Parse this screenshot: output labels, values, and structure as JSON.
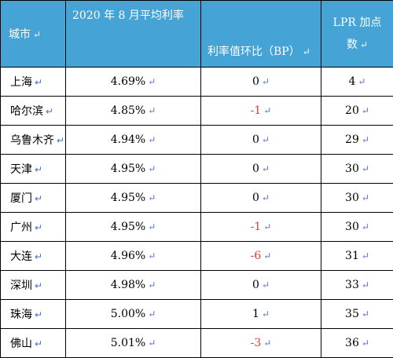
{
  "header": {
    "city": "城市",
    "rate": "2020 年 8 月平均利率",
    "change": "利率值环比（BP）",
    "lpr_line1": "LPR 加点",
    "lpr_line2": "数"
  },
  "rows": [
    {
      "city": "上海",
      "rate": "4.69%",
      "change": "0",
      "lpr": "4"
    },
    {
      "city": "哈尔滨",
      "rate": "4.85%",
      "change": "-1",
      "lpr": "20"
    },
    {
      "city": "乌鲁木齐",
      "rate": "4.94%",
      "change": "0",
      "lpr": "29"
    },
    {
      "city": "天津",
      "rate": "4.95%",
      "change": "0",
      "lpr": "30"
    },
    {
      "city": "厦门",
      "rate": "4.95%",
      "change": "0",
      "lpr": "30"
    },
    {
      "city": "广州",
      "rate": "4.95%",
      "change": "-1",
      "lpr": "30"
    },
    {
      "city": "大连",
      "rate": "4.96%",
      "change": "-6",
      "lpr": "31"
    },
    {
      "city": "深圳",
      "rate": "4.98%",
      "change": "0",
      "lpr": "33"
    },
    {
      "city": "珠海",
      "rate": "5.00%",
      "change": "1",
      "lpr": "35"
    },
    {
      "city": "佛山",
      "rate": "5.01%",
      "change": "-3",
      "lpr": "36"
    }
  ],
  "colors": {
    "header_bg": "#45a3d6",
    "negative": "#e53935"
  }
}
